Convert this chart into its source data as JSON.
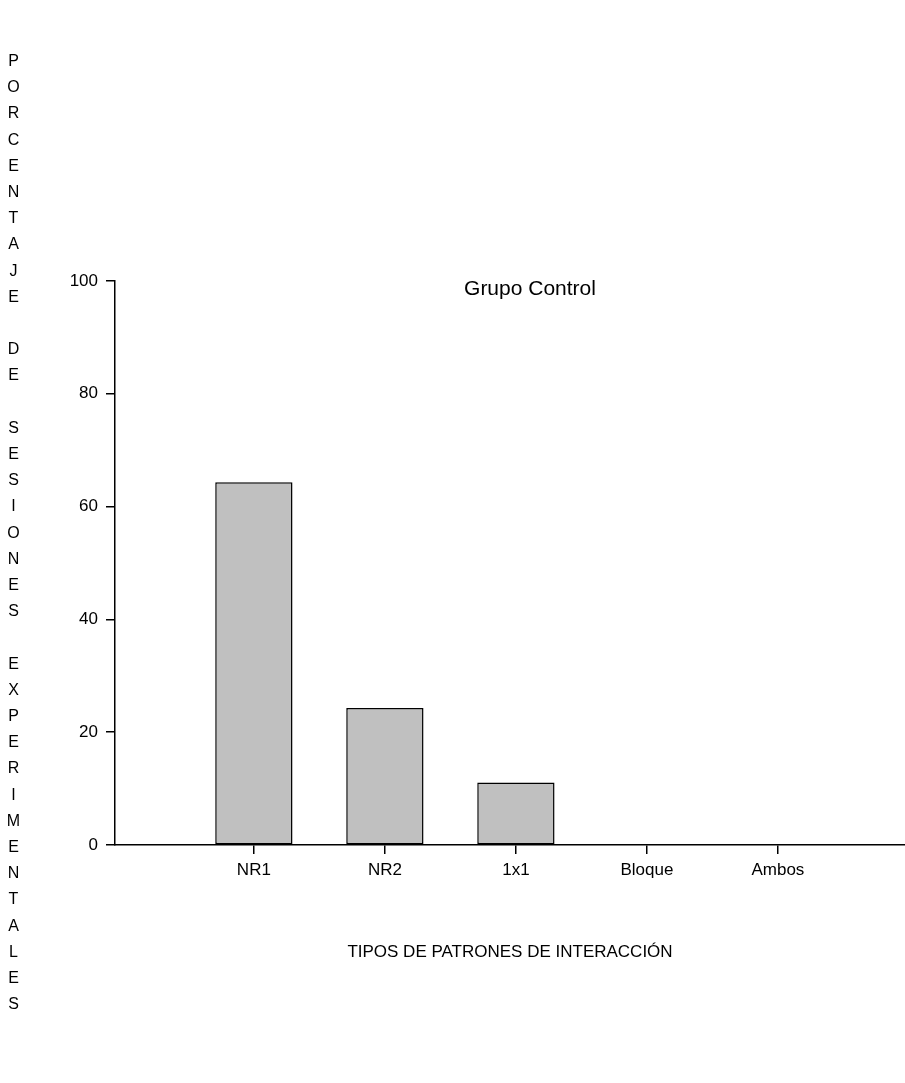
{
  "chart_data": {
    "type": "bar",
    "title": "Grupo Control",
    "xlabel": "TIPOS DE PATRONES DE INTERACCIÓN",
    "ylabel": "PORCENTAJE DE SESIONES EXPERIMENTALES",
    "categories": [
      "NR1",
      "NR2",
      "1x1",
      "Bloque",
      "Ambos"
    ],
    "values": [
      64.3,
      24.3,
      11.1,
      0,
      0
    ],
    "color": "#c0c0c0",
    "ylim": [
      0,
      100
    ],
    "yticks": [
      0,
      20,
      40,
      60,
      80,
      100
    ],
    "grid": false,
    "legend": false
  }
}
